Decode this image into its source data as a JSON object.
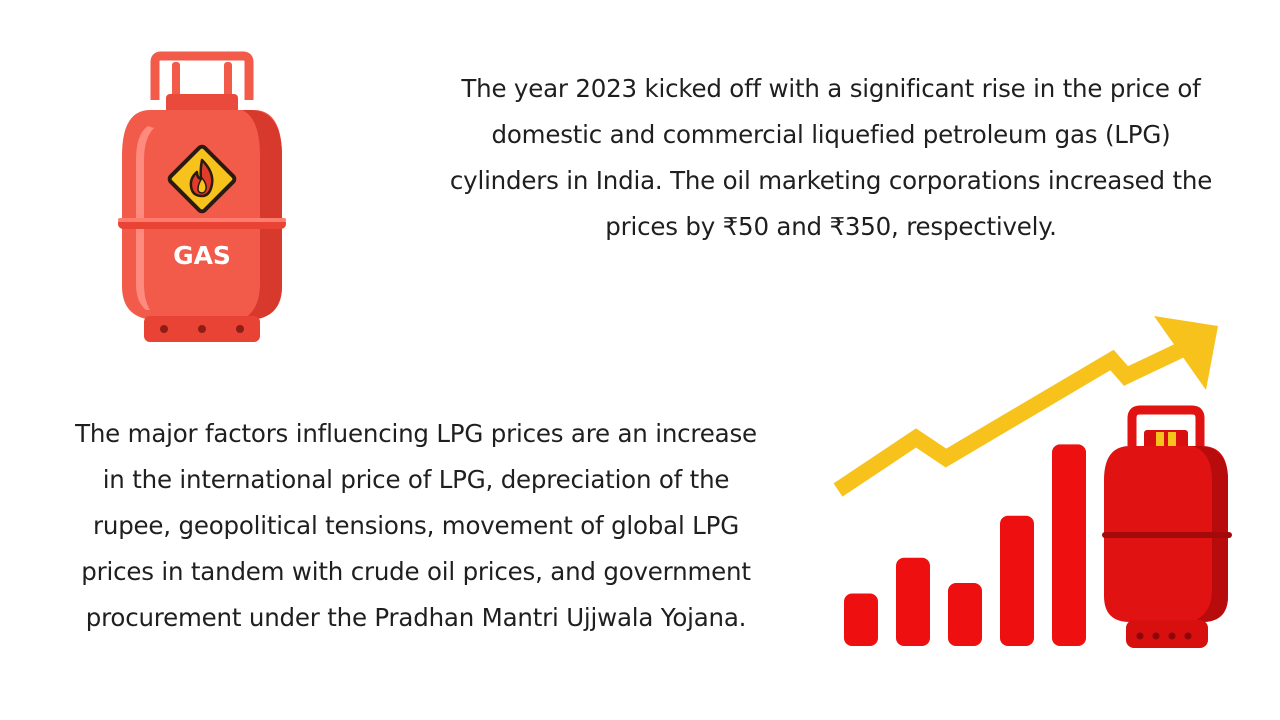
{
  "top_paragraph": {
    "lines": [
      "The year 2023 kicked off with a significant rise in the price of",
      "domestic and commercial liquefied petroleum gas (LPG)",
      "cylinders in India. The oil marketing corporations increased the",
      "prices by ₹50 and ₹350, respectively."
    ]
  },
  "bottom_paragraph": {
    "lines": [
      "The major factors influencing LPG prices are an increase",
      "in the international price of LPG, depreciation of the",
      "rupee, geopolitical tensions, movement of global LPG",
      "prices in tandem with crude oil prices, and government",
      "procurement under the Pradhan Mantri Ujjwala Yojana."
    ]
  },
  "cylinder_illustration": {
    "label": "GAS",
    "icon": "flame-hazard-icon",
    "colors": {
      "body": "#f25a4a",
      "shade": "#d8392d",
      "highlight": "#ff8a7e",
      "hazard_sign": "#f7c21b",
      "flame": "#e23b2a"
    }
  },
  "rising_price_illustration": {
    "icon": "trend-up-arrow-icon",
    "bar_levels": [
      0.25,
      0.42,
      0.3,
      0.62,
      0.96
    ],
    "colors": {
      "bars": "#ee1010",
      "arrow": "#f7c21b",
      "cylinder": "#e01212"
    }
  }
}
